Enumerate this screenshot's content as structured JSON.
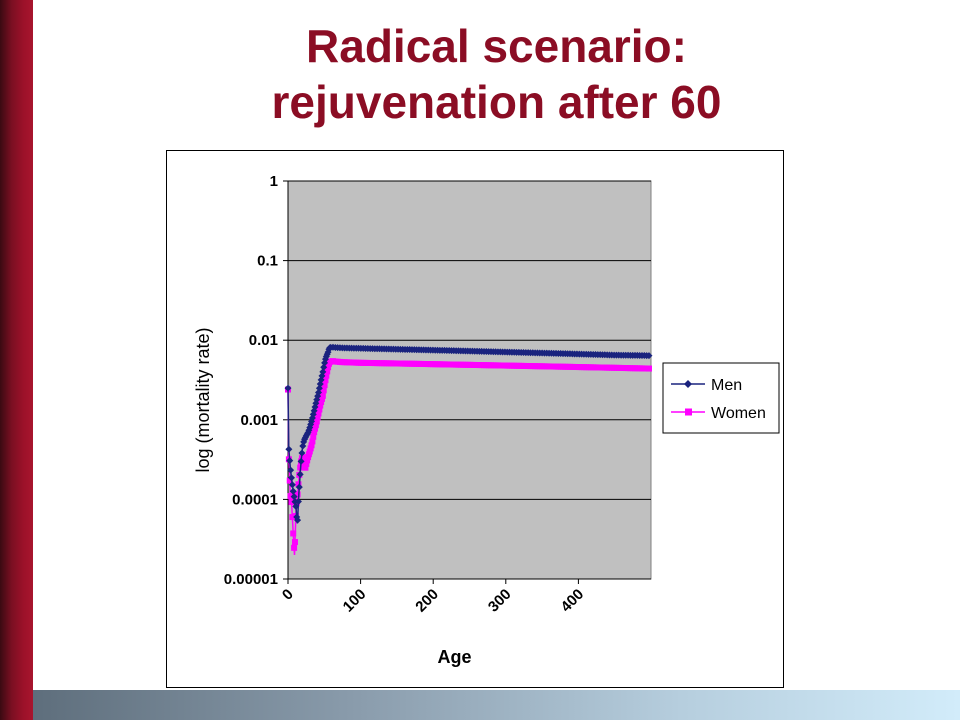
{
  "title": {
    "line1": "Radical scenario:",
    "line2": "rejuvenation after 60"
  },
  "colors": {
    "title": "#8b0d24",
    "plot_background": "#c0c0c0",
    "men": "#1a237e",
    "women": "#ff00ff"
  },
  "chart_data": {
    "type": "line",
    "xlabel": "Age",
    "ylabel": "log (mortality rate)",
    "y_scale": "log",
    "ylim": [
      1e-05,
      1
    ],
    "xlim": [
      0,
      500
    ],
    "x_ticks": [
      0,
      100,
      200,
      300,
      400
    ],
    "y_ticks": [
      "0.00001",
      "0.0001",
      "0.001",
      "0.01",
      "0.1",
      "1"
    ],
    "grid": "horizontal",
    "legend_position": "right",
    "series": [
      {
        "name": "Men",
        "marker": "diamond",
        "x": [
          0,
          1,
          3,
          5,
          7,
          9,
          11,
          12,
          13,
          14,
          15,
          16,
          17,
          18,
          20,
          22,
          24,
          26,
          28,
          30,
          33,
          36,
          39,
          42,
          45,
          48,
          50,
          52,
          55,
          57,
          60,
          65,
          75,
          100,
          150,
          200,
          250,
          300,
          350,
          400,
          450,
          499
        ],
        "y": [
          0.0025,
          0.00045,
          0.00026,
          0.00018,
          0.00013,
          0.0001,
          8e-05,
          6e-05,
          5e-05,
          8e-05,
          0.00012,
          0.00016,
          0.00022,
          0.0003,
          0.00045,
          0.00055,
          0.0006,
          0.00065,
          0.0007,
          0.0008,
          0.001,
          0.0013,
          0.0017,
          0.0022,
          0.003,
          0.004,
          0.005,
          0.006,
          0.007,
          0.008,
          0.0082,
          0.0081,
          0.008,
          0.0079,
          0.0077,
          0.0075,
          0.0073,
          0.0071,
          0.0069,
          0.0067,
          0.0065,
          0.0064
        ]
      },
      {
        "name": "Women",
        "marker": "square",
        "x": [
          0,
          1,
          2,
          3,
          5,
          7,
          9,
          11,
          12,
          13,
          14,
          15,
          16,
          17,
          18,
          20,
          22,
          24,
          26,
          28,
          30,
          33,
          36,
          39,
          42,
          45,
          48,
          50,
          52,
          55,
          57,
          60,
          65,
          75,
          100,
          150,
          200,
          250,
          300,
          350,
          400,
          450,
          499
        ],
        "y": [
          0.0024,
          0.00035,
          0.00022,
          0.00012,
          9e-05,
          4e-05,
          2e-05,
          7e-05,
          9e-05,
          0.00011,
          0.00014,
          0.00018,
          0.00022,
          0.00026,
          0.0003,
          0.00035,
          0.0003,
          0.00025,
          0.0003,
          0.00035,
          0.0004,
          0.0005,
          0.0007,
          0.0009,
          0.0012,
          0.0016,
          0.002,
          0.0026,
          0.0033,
          0.0045,
          0.0053,
          0.0055,
          0.0054,
          0.0053,
          0.0052,
          0.0051,
          0.005,
          0.0049,
          0.0048,
          0.0047,
          0.0046,
          0.0045,
          0.0044
        ]
      }
    ]
  }
}
